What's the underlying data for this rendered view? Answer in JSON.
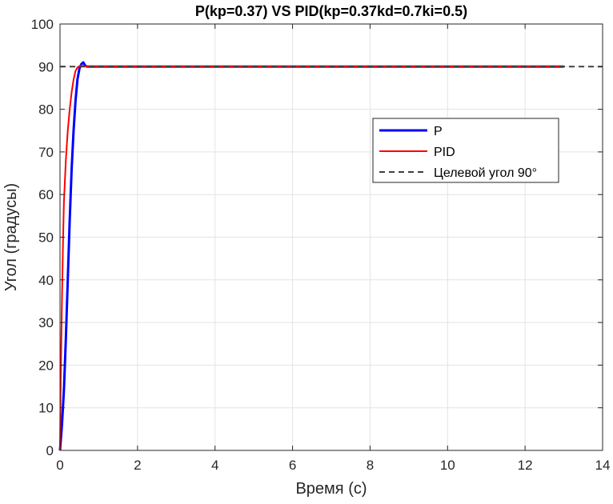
{
  "chart_data": {
    "type": "line",
    "title": "P(kp=0.37) VS PID(kp=0.37kd=0.7ki=0.5)",
    "xlabel": "Время (с)",
    "ylabel": "Угол (градусы)",
    "xlim": [
      0,
      14
    ],
    "ylim": [
      0,
      100
    ],
    "xticks": [
      0,
      2,
      4,
      6,
      8,
      10,
      12,
      14
    ],
    "yticks": [
      0,
      10,
      20,
      30,
      40,
      50,
      60,
      70,
      80,
      90,
      100
    ],
    "grid": true,
    "legend_position": "top-right",
    "series": [
      {
        "name": "P",
        "color": "#0000ff",
        "style": "solid",
        "x": [
          0,
          0.05,
          0.1,
          0.15,
          0.2,
          0.25,
          0.3,
          0.35,
          0.4,
          0.45,
          0.5,
          0.55,
          0.6,
          0.65,
          0.7,
          1,
          2,
          4,
          6,
          8,
          10,
          12,
          13
        ],
        "y": [
          0,
          6,
          14,
          26,
          40,
          54,
          66,
          75,
          82,
          87,
          89.5,
          90.6,
          91,
          90.2,
          90,
          90,
          90,
          90,
          90,
          90,
          90,
          90,
          90
        ]
      },
      {
        "name": "PID",
        "color": "#ff0000",
        "style": "solid",
        "x": [
          0,
          0.02,
          0.05,
          0.08,
          0.1,
          0.15,
          0.2,
          0.25,
          0.3,
          0.35,
          0.4,
          0.45,
          0.5,
          0.55,
          0.6,
          0.7,
          1,
          2,
          4,
          6,
          8,
          10,
          12,
          13
        ],
        "y": [
          0,
          18,
          35,
          50,
          58,
          68,
          75,
          80,
          84,
          87,
          89,
          89.8,
          90.1,
          90.3,
          90.1,
          90,
          90,
          90,
          90,
          90,
          90,
          90,
          90,
          90
        ]
      },
      {
        "name": "Целевой угол 90°",
        "color": "#404040",
        "style": "dashed",
        "x": [
          0,
          14
        ],
        "y": [
          90,
          90
        ]
      }
    ]
  }
}
